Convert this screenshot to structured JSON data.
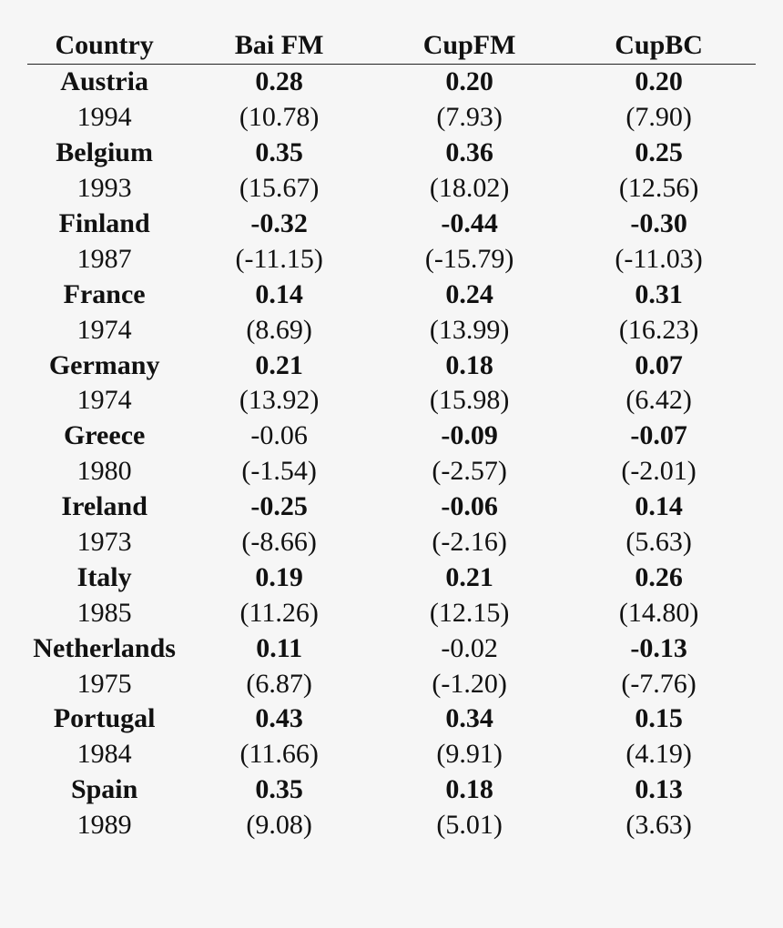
{
  "headers": [
    "Country",
    "Bai FM",
    "CupFM",
    "CupBC"
  ],
  "rows": [
    {
      "country": "Austria",
      "year": "1994",
      "coef": [
        {
          "v": "0.28",
          "bold": true
        },
        {
          "v": "0.20",
          "bold": true
        },
        {
          "v": "0.20",
          "bold": true
        }
      ],
      "tstat": [
        "(10.78)",
        "(7.93)",
        "(7.90)"
      ]
    },
    {
      "country": "Belgium",
      "year": "1993",
      "coef": [
        {
          "v": "0.35",
          "bold": true
        },
        {
          "v": "0.36",
          "bold": true
        },
        {
          "v": "0.25",
          "bold": true
        }
      ],
      "tstat": [
        "(15.67)",
        "(18.02)",
        "(12.56)"
      ]
    },
    {
      "country": "Finland",
      "year": "1987",
      "coef": [
        {
          "v": "-0.32",
          "bold": true
        },
        {
          "v": "-0.44",
          "bold": true
        },
        {
          "v": "-0.30",
          "bold": true
        }
      ],
      "tstat": [
        "(-11.15)",
        "(-15.79)",
        "(-11.03)"
      ]
    },
    {
      "country": "France",
      "year": "1974",
      "coef": [
        {
          "v": "0.14",
          "bold": true
        },
        {
          "v": "0.24",
          "bold": true
        },
        {
          "v": "0.31",
          "bold": true
        }
      ],
      "tstat": [
        "(8.69)",
        "(13.99)",
        "(16.23)"
      ]
    },
    {
      "country": "Germany",
      "year": "1974",
      "coef": [
        {
          "v": "0.21",
          "bold": true
        },
        {
          "v": "0.18",
          "bold": true
        },
        {
          "v": "0.07",
          "bold": true
        }
      ],
      "tstat": [
        "(13.92)",
        "(15.98)",
        "(6.42)"
      ]
    },
    {
      "country": "Greece",
      "year": "1980",
      "coef": [
        {
          "v": "-0.06",
          "bold": false
        },
        {
          "v": "-0.09",
          "bold": true
        },
        {
          "v": "-0.07",
          "bold": true
        }
      ],
      "tstat": [
        "(-1.54)",
        "(-2.57)",
        "(-2.01)"
      ]
    },
    {
      "country": "Ireland",
      "year": "1973",
      "coef": [
        {
          "v": "-0.25",
          "bold": true
        },
        {
          "v": "-0.06",
          "bold": true
        },
        {
          "v": "0.14",
          "bold": true
        }
      ],
      "tstat": [
        "(-8.66)",
        "(-2.16)",
        "(5.63)"
      ]
    },
    {
      "country": "Italy",
      "year": "1985",
      "coef": [
        {
          "v": "0.19",
          "bold": true
        },
        {
          "v": "0.21",
          "bold": true
        },
        {
          "v": "0.26",
          "bold": true
        }
      ],
      "tstat": [
        "(11.26)",
        "(12.15)",
        "(14.80)"
      ]
    },
    {
      "country": "Netherlands",
      "year": "1975",
      "coef": [
        {
          "v": "0.11",
          "bold": true
        },
        {
          "v": "-0.02",
          "bold": false
        },
        {
          "v": "-0.13",
          "bold": true
        }
      ],
      "tstat": [
        "(6.87)",
        "(-1.20)",
        "(-7.76)"
      ]
    },
    {
      "country": "Portugal",
      "year": "1984",
      "coef": [
        {
          "v": "0.43",
          "bold": true
        },
        {
          "v": "0.34",
          "bold": true
        },
        {
          "v": "0.15",
          "bold": true
        }
      ],
      "tstat": [
        "(11.66)",
        "(9.91)",
        "(4.19)"
      ]
    },
    {
      "country": "Spain",
      "year": "1989",
      "coef": [
        {
          "v": "0.35",
          "bold": true
        },
        {
          "v": "0.18",
          "bold": true
        },
        {
          "v": "0.13",
          "bold": true
        }
      ],
      "tstat": [
        "(9.08)",
        "(5.01)",
        "(3.63)"
      ]
    }
  ]
}
